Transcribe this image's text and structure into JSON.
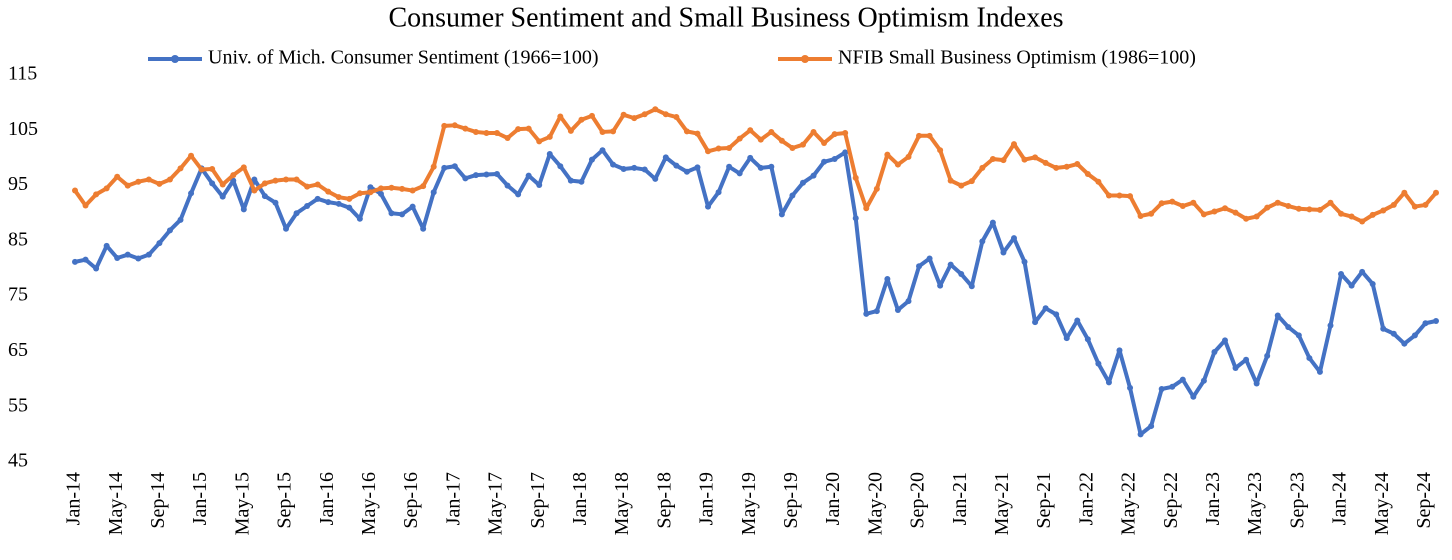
{
  "chart_data": {
    "type": "line",
    "title": "Consumer Sentiment and Small Business Optimism Indexes",
    "categories": [
      "Jan-14",
      null,
      null,
      null,
      "May-14",
      null,
      null,
      null,
      "Sep-14",
      null,
      null,
      null,
      "Jan-15",
      null,
      null,
      null,
      "May-15",
      null,
      null,
      null,
      "Sep-15",
      null,
      null,
      null,
      "Jan-16",
      null,
      null,
      null,
      "May-16",
      null,
      null,
      null,
      "Sep-16",
      null,
      null,
      null,
      "Jan-17",
      null,
      null,
      null,
      "May-17",
      null,
      null,
      null,
      "Sep-17",
      null,
      null,
      null,
      "Jan-18",
      null,
      null,
      null,
      "May-18",
      null,
      null,
      null,
      "Sep-18",
      null,
      null,
      null,
      "Jan-19",
      null,
      null,
      null,
      "May-19",
      null,
      null,
      null,
      "Sep-19",
      null,
      null,
      null,
      "Jan-20",
      null,
      null,
      null,
      "May-20",
      null,
      null,
      null,
      "Sep-20",
      null,
      null,
      null,
      "Jan-21",
      null,
      null,
      null,
      "May-21",
      null,
      null,
      null,
      "Sep-21",
      null,
      null,
      null,
      "Jan-22",
      null,
      null,
      null,
      "May-22",
      null,
      null,
      null,
      "Sep-22",
      null,
      null,
      null,
      "Jan-23",
      null,
      null,
      null,
      "May-23",
      null,
      null,
      null,
      "Sep-23",
      null,
      null,
      null,
      "Jan-24",
      null,
      null,
      null,
      "May-24",
      null,
      null,
      null,
      "Sep-24",
      null
    ],
    "series": [
      {
        "name": "Univ. of Mich. Consumer Sentiment (1966=100)",
        "color": "#4472c4",
        "values": [
          81.2,
          81.6,
          80.0,
          84.1,
          81.9,
          82.5,
          81.8,
          82.5,
          84.6,
          86.9,
          88.8,
          93.6,
          98.1,
          95.4,
          93.0,
          95.9,
          90.7,
          96.1,
          93.1,
          91.9,
          87.2,
          90.0,
          91.3,
          92.6,
          92.0,
          91.7,
          91.0,
          89.0,
          94.7,
          93.5,
          90.0,
          89.8,
          91.2,
          87.2,
          93.8,
          98.2,
          98.5,
          96.3,
          96.9,
          97.0,
          97.1,
          95.0,
          93.4,
          96.8,
          95.1,
          100.7,
          98.5,
          95.9,
          95.7,
          99.7,
          101.4,
          98.8,
          98.0,
          98.2,
          97.9,
          96.2,
          100.1,
          98.6,
          97.5,
          98.3,
          91.2,
          93.8,
          98.4,
          97.2,
          100.0,
          98.2,
          98.4,
          89.8,
          93.2,
          95.5,
          96.8,
          99.3,
          99.8,
          101.0,
          89.1,
          71.8,
          72.3,
          78.1,
          72.5,
          74.1,
          80.4,
          81.8,
          76.9,
          80.7,
          79.0,
          76.8,
          84.9,
          88.3,
          82.9,
          85.5,
          81.2,
          70.3,
          72.8,
          71.7,
          67.4,
          70.6,
          67.2,
          62.8,
          59.4,
          65.2,
          58.4,
          50.0,
          51.5,
          58.2,
          58.6,
          59.9,
          56.8,
          59.7,
          64.9,
          67.0,
          62.0,
          63.5,
          59.2,
          64.2,
          71.5,
          69.4,
          67.9,
          63.8,
          61.3,
          69.7,
          79.0,
          76.9,
          79.4,
          77.2,
          69.1,
          68.2,
          66.4,
          67.9,
          70.1,
          70.5
        ]
      },
      {
        "name": "NFIB Small Business Optimism (1986=100)",
        "color": "#ed7d31",
        "values": [
          94.1,
          91.4,
          93.4,
          94.5,
          96.6,
          95.0,
          95.7,
          96.1,
          95.3,
          96.1,
          98.1,
          100.4,
          97.9,
          98.0,
          95.2,
          96.9,
          98.3,
          94.1,
          95.4,
          95.9,
          96.1,
          96.1,
          94.8,
          95.2,
          93.9,
          92.9,
          92.6,
          93.6,
          93.8,
          94.5,
          94.6,
          94.4,
          94.1,
          94.9,
          98.4,
          105.8,
          105.9,
          105.3,
          104.7,
          104.5,
          104.5,
          103.6,
          105.2,
          105.3,
          103.0,
          103.8,
          107.5,
          104.9,
          106.9,
          107.6,
          104.7,
          104.8,
          107.8,
          107.2,
          107.9,
          108.8,
          107.9,
          107.4,
          104.8,
          104.4,
          101.2,
          101.7,
          101.8,
          103.5,
          105.0,
          103.3,
          104.7,
          103.1,
          101.8,
          102.4,
          104.7,
          102.7,
          104.3,
          104.5,
          96.4,
          90.9,
          94.4,
          100.6,
          98.8,
          100.2,
          104.0,
          104.0,
          101.4,
          95.9,
          95.0,
          95.8,
          98.2,
          99.8,
          99.6,
          102.5,
          99.7,
          100.1,
          99.1,
          98.2,
          98.4,
          98.9,
          97.1,
          95.7,
          93.2,
          93.2,
          93.1,
          89.5,
          89.9,
          91.8,
          92.1,
          91.3,
          91.9,
          89.8,
          90.3,
          90.9,
          90.1,
          89.0,
          89.4,
          91.0,
          91.9,
          91.3,
          90.8,
          90.7,
          90.6,
          91.9,
          89.9,
          89.4,
          88.5,
          89.7,
          90.5,
          91.5,
          93.7,
          91.2,
          91.5,
          93.7
        ]
      }
    ],
    "ylim": [
      45,
      115
    ],
    "yticks": [
      45,
      55,
      65,
      75,
      85,
      95,
      105,
      115
    ],
    "grid": false,
    "legend": "top"
  }
}
